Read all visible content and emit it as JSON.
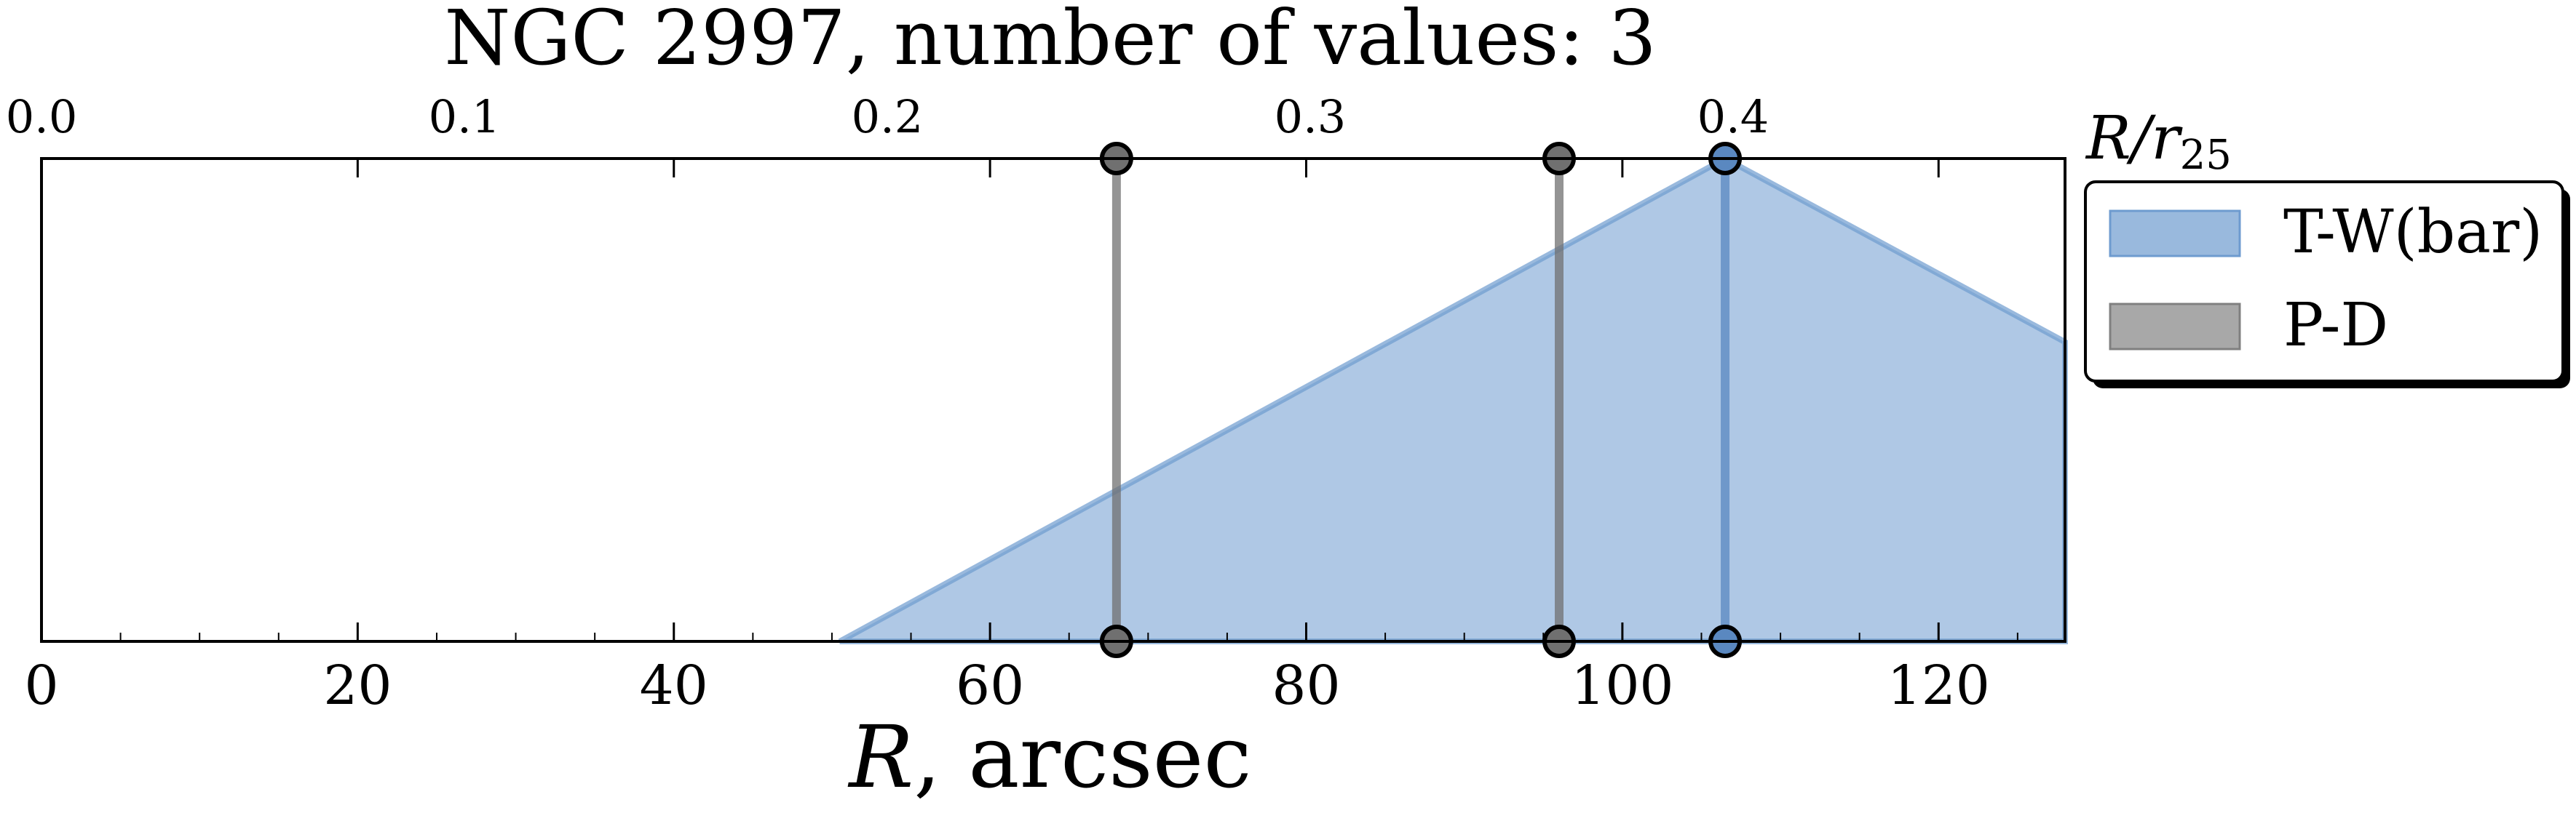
{
  "chart_data": {
    "type": "area",
    "title": "NGC 2997, number of values: 3",
    "xlabel_symbol": "R",
    "xlabel_unit": ", arcsec",
    "top_axis_label_base": "R/r",
    "top_axis_label_sub": "25",
    "xlim": [
      0,
      128
    ],
    "ylim": [
      0,
      1
    ],
    "bottom_ticks": [
      0,
      20,
      40,
      60,
      80,
      100,
      120
    ],
    "bottom_tick_labels": [
      "0",
      "20",
      "40",
      "60",
      "80",
      "100",
      "120"
    ],
    "top_ticks": [
      0.0,
      0.1,
      0.2,
      0.3,
      0.4
    ],
    "top_tick_labels": [
      "0.0",
      "0.1",
      "0.2",
      "0.3",
      "0.4"
    ],
    "r25_arcsec": 267.5,
    "grid": false,
    "legend_position": "outside-right",
    "series": [
      {
        "name": "T-W(bar)",
        "kind": "triangle",
        "color": "#6e9bcf",
        "x": [
          50.5,
          106.5,
          128,
          128
        ],
        "y": [
          0,
          1,
          0.62,
          0
        ],
        "markers": [
          106.5
        ]
      },
      {
        "name": "P-D",
        "kind": "vlines",
        "color": "#707070",
        "markers": [
          68.0,
          96.0
        ]
      }
    ],
    "legend": [
      {
        "label": "T-W(bar)",
        "color": "#6e9bcf"
      },
      {
        "label": "P-D",
        "color": "#a8a8a8"
      }
    ]
  }
}
